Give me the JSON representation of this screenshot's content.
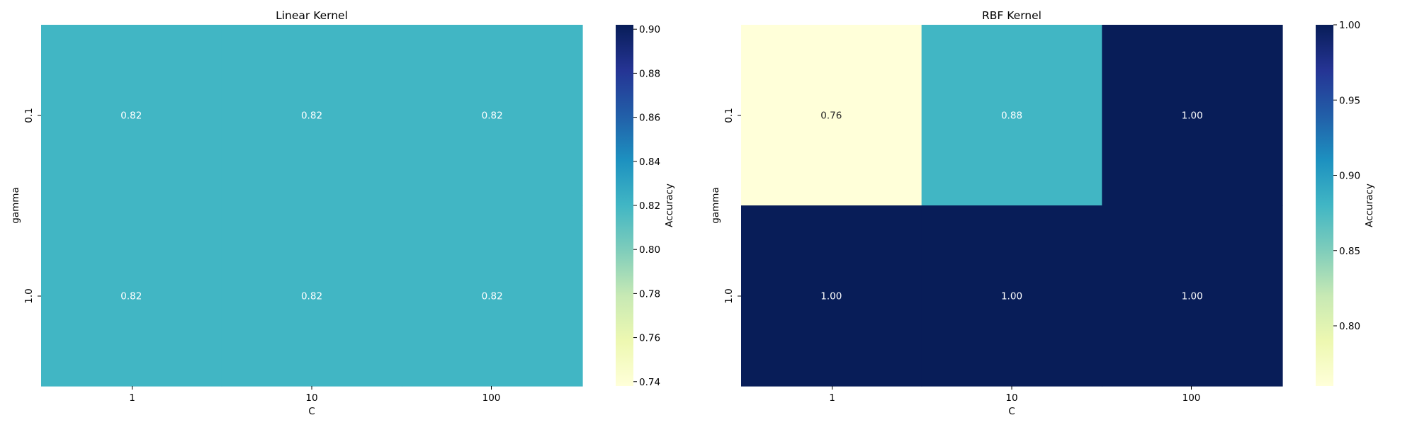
{
  "chart_data": [
    {
      "type": "heatmap",
      "title": "Linear Kernel",
      "xlabel": "C",
      "ylabel": "gamma",
      "x_categories": [
        "1",
        "10",
        "100"
      ],
      "y_categories": [
        "0.1",
        "1.0"
      ],
      "values": [
        [
          0.82,
          0.82,
          0.82
        ],
        [
          0.82,
          0.82,
          0.82
        ]
      ],
      "value_labels": [
        [
          "0.82",
          "0.82",
          "0.82"
        ],
        [
          "0.82",
          "0.82",
          "0.82"
        ]
      ],
      "colormap": "YlGnBu",
      "colorbar": {
        "label": "Accuracy",
        "range": [
          0.738,
          0.902
        ],
        "ticks": [
          0.74,
          0.76,
          0.78,
          0.8,
          0.82,
          0.84,
          0.86,
          0.88,
          0.9
        ],
        "tick_labels": [
          "0.74",
          "0.76",
          "0.78",
          "0.80",
          "0.82",
          "0.84",
          "0.86",
          "0.88",
          "0.90"
        ]
      },
      "grid": false
    },
    {
      "type": "heatmap",
      "title": "RBF Kernel",
      "xlabel": "C",
      "ylabel": "gamma",
      "x_categories": [
        "1",
        "10",
        "100"
      ],
      "y_categories": [
        "0.1",
        "1.0"
      ],
      "values": [
        [
          0.76,
          0.88,
          1.0
        ],
        [
          1.0,
          1.0,
          1.0
        ]
      ],
      "value_labels": [
        [
          "0.76",
          "0.88",
          "1.00"
        ],
        [
          "1.00",
          "1.00",
          "1.00"
        ]
      ],
      "colormap": "YlGnBu",
      "colorbar": {
        "label": "Accuracy",
        "range": [
          0.76,
          1.0
        ],
        "ticks": [
          0.8,
          0.85,
          0.9,
          0.95,
          1.0
        ],
        "tick_labels": [
          "0.80",
          "0.85",
          "0.90",
          "0.95",
          "1.00"
        ]
      },
      "grid": false
    }
  ]
}
